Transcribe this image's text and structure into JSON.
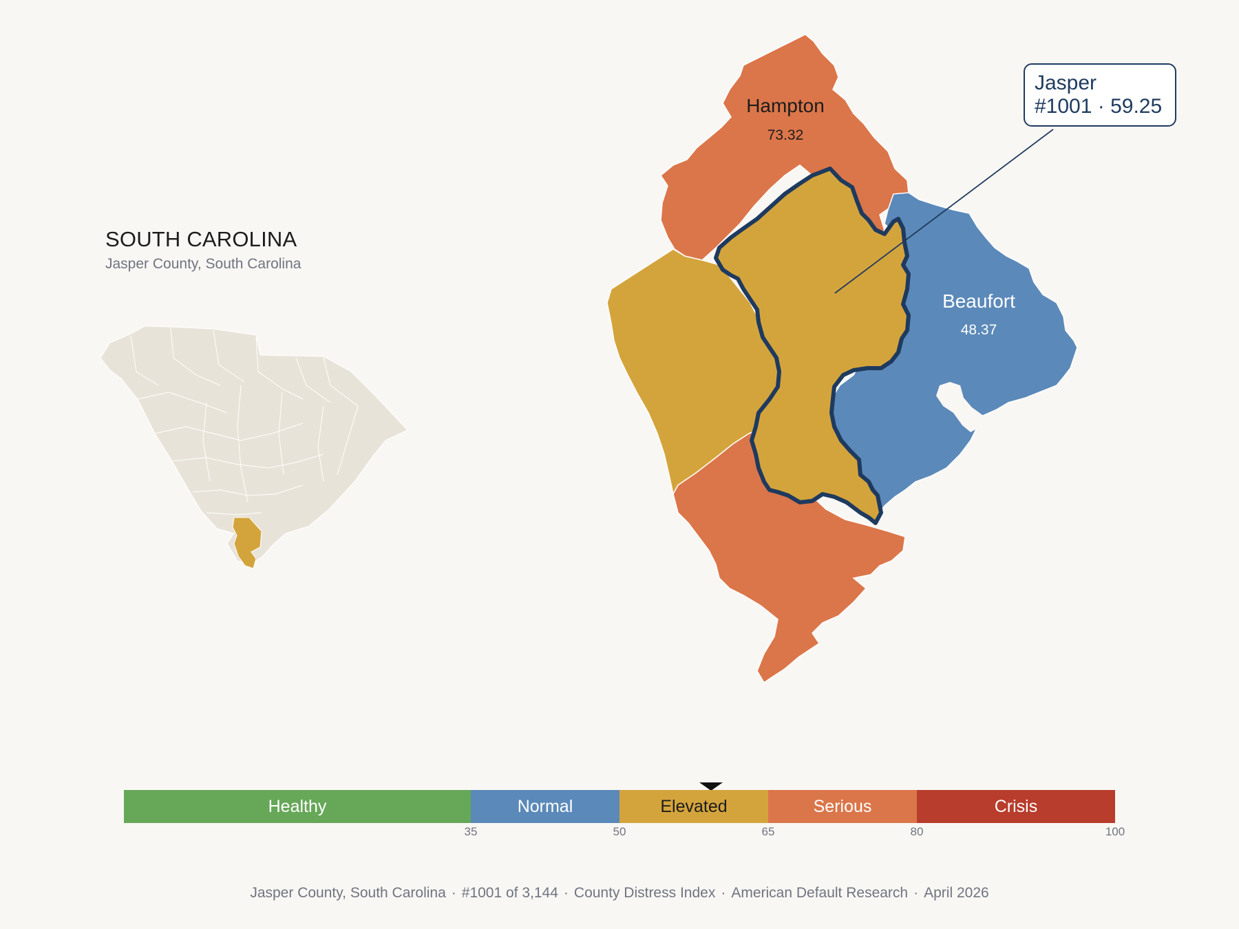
{
  "state": {
    "title": "SOUTH CAROLINA",
    "subtitle": "Jasper County, South Carolina"
  },
  "counties": {
    "hampton": {
      "name": "Hampton",
      "score": "73.32",
      "color": "#db764a"
    },
    "beaufort": {
      "name": "Beaufort",
      "score": "48.37",
      "color": "#5b89b9"
    },
    "jasper": {
      "name": "Jasper",
      "rank": "#1001",
      "score": "59.25",
      "color": "#d4a43c",
      "outline": "#1e3a5f"
    },
    "allendale_area": {
      "color": "#d4a43c"
    },
    "southern_county": {
      "color": "#db764a"
    }
  },
  "inset": {
    "base_color": "#e8e3d8",
    "highlight_color": "#d4a43c"
  },
  "callout": {
    "line1": "Jasper",
    "line2": "#1001 · 59.25"
  },
  "legend": {
    "segments": [
      {
        "label": "Healthy",
        "from": 0,
        "to": 35,
        "color": "#66a758",
        "text_color": "#ffffff"
      },
      {
        "label": "Normal",
        "from": 35,
        "to": 50,
        "color": "#5b89b9",
        "text_color": "#ffffff"
      },
      {
        "label": "Elevated",
        "from": 50,
        "to": 65,
        "color": "#d4a43c",
        "text_color": "#1c1c1c"
      },
      {
        "label": "Serious",
        "from": 65,
        "to": 80,
        "color": "#db764a",
        "text_color": "#ffffff"
      },
      {
        "label": "Crisis",
        "from": 80,
        "to": 100,
        "color": "#b83d2c",
        "text_color": "#ffffff"
      }
    ],
    "ticks": [
      "35",
      "50",
      "65",
      "80",
      "100"
    ],
    "marker_value": 59.25
  },
  "footer": {
    "items": [
      "Jasper County, South Carolina",
      "#1001 of 3,144",
      "County Distress Index",
      "American Default Research",
      "April 2026"
    ],
    "separator": "·"
  }
}
